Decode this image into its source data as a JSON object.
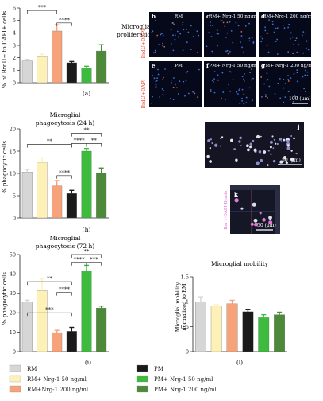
{
  "colors": {
    "RM": "#d6d6d6",
    "RM_nrg50": "#fdf1b8",
    "RM_nrg200": "#f6a27a",
    "PM": "#1a1a1a",
    "PM_nrg50": "#3dbb3d",
    "PM_nrg200": "#4c8a3a",
    "axis": "#222222",
    "micro_bg": "#06091a"
  },
  "legend": {
    "entries": [
      {
        "key": "RM",
        "label": "RM"
      },
      {
        "key": "RM_nrg50",
        "label": "RM+ Nrg-1 50 ng/ml"
      },
      {
        "key": "RM_nrg200",
        "label": "RM+Nrg-1 200 ng/ml"
      },
      {
        "key": "PM",
        "label": "PM"
      },
      {
        "key": "PM_nrg50",
        "label": "PM+ Nrg-1 50 ng/ml"
      },
      {
        "key": "PM_nrg200",
        "label": "PM+ Nrg-1 200 ng/ml"
      }
    ]
  },
  "micrographs": {
    "ylabel_top": "BrdU+DAPI",
    "ylabel_bottom": "BrdU+DAPI",
    "top_row": [
      {
        "letter": "b",
        "title": "RM"
      },
      {
        "letter": "c",
        "title": "RM+ Nrg-1 50 ng/ml"
      },
      {
        "letter": "d",
        "title": "RM+Nrg-1 200 ng/ml"
      }
    ],
    "bottom_row": [
      {
        "letter": "e",
        "title": "PM"
      },
      {
        "letter": "f",
        "title": "PM+ Nrg-1 50 ng/ml"
      },
      {
        "letter": "g",
        "title": "PM+ Nrg-1 200 ng/ml"
      }
    ],
    "scale_bar_g": "100 (μm)",
    "panel_j": {
      "letter": "j",
      "scale": "50 (μm)"
    },
    "panel_k": {
      "letter": "k",
      "scale": "50 (μm)",
      "ylabel": "Iba 1-DAPI-Beads"
    }
  },
  "chart_data": [
    {
      "id": "a",
      "type": "bar",
      "title": "Microglial proliferation",
      "panel_label": "(a)",
      "ylabel": "% of BrdU+ to DAPI+ cells",
      "ylim": [
        0,
        6
      ],
      "yticks": [
        "0",
        "1",
        "2",
        "3",
        "4",
        "5",
        "6"
      ],
      "categories": [
        "RM",
        "RM+ Nrg-1 50 ng/ml",
        "RM+Nrg-1 200 ng/ml",
        "PM",
        "PM+ Nrg-1 50 ng/ml",
        "PM+ Nrg-1 200 ng/ml"
      ],
      "values": [
        1.75,
        2.1,
        4.15,
        1.6,
        1.2,
        2.55
      ],
      "errors": [
        0.12,
        0.2,
        0.5,
        0.1,
        0.12,
        0.5
      ],
      "significance": [
        {
          "from": 0,
          "to": 2,
          "label": "***",
          "y": 5.8
        },
        {
          "from": 2,
          "to": 3,
          "label": "****",
          "y": 4.8
        }
      ]
    },
    {
      "id": "h",
      "type": "bar",
      "title": "Microglial phagocytosis (24 h)",
      "panel_label": "(h)",
      "ylabel": "% phagocytic cells",
      "ylim": [
        0,
        20
      ],
      "yticks": [
        "0",
        "5",
        "10",
        "15",
        "20"
      ],
      "categories": [
        "RM",
        "RM+ Nrg-1 50 ng/ml",
        "RM+Nrg-1 200 ng/ml",
        "PM",
        "PM+ Nrg-1 50 ng/ml",
        "PM+ Nrg-1 200 ng/ml"
      ],
      "values": [
        10.3,
        12.5,
        7.2,
        5.5,
        15.0,
        10.0
      ],
      "errors": [
        0.6,
        1.0,
        1.2,
        0.7,
        0.6,
        1.2
      ],
      "significance": [
        {
          "from": 0,
          "to": 3,
          "label": "**",
          "y": 16.5
        },
        {
          "from": 2,
          "to": 3,
          "label": "****",
          "y": 9.5
        },
        {
          "from": 3,
          "to": 4,
          "label": "****",
          "y": 16.7
        },
        {
          "from": 3,
          "to": 5,
          "label": "**",
          "y": 19.0
        },
        {
          "from": 4,
          "to": 5,
          "label": "**",
          "y": 16.7
        }
      ]
    },
    {
      "id": "i",
      "type": "bar",
      "title": "Microglial phagocytosis (72 h)",
      "panel_label": "(i)",
      "ylabel": "% phagocytic cells",
      "ylim": [
        0,
        50
      ],
      "yticks": [
        "0",
        "10",
        "20",
        "30",
        "40",
        "50"
      ],
      "categories": [
        "RM",
        "RM+ Nrg-1 50 ng/ml",
        "RM+Nrg-1 200 ng/ml",
        "PM",
        "PM+ Nrg-1 50 ng/ml",
        "PM+ Nrg-1 200 ng/ml"
      ],
      "values": [
        25.5,
        31.5,
        9.8,
        10.5,
        41.5,
        22.5
      ],
      "errors": [
        1.0,
        6.0,
        1.2,
        2.0,
        3.0,
        1.0
      ],
      "significance": [
        {
          "from": 0,
          "to": 3,
          "label": "**",
          "y": 36.0
        },
        {
          "from": 2,
          "to": 3,
          "label": "****",
          "y": 30.5
        },
        {
          "from": 0,
          "to": 3,
          "label": "***",
          "y": 20.0
        },
        {
          "from": 3,
          "to": 4,
          "label": "****",
          "y": 46.0
        },
        {
          "from": 3,
          "to": 5,
          "label": "**",
          "y": 50.0
        },
        {
          "from": 4,
          "to": 5,
          "label": "***",
          "y": 46.0
        }
      ]
    },
    {
      "id": "l",
      "type": "bar",
      "title": "Microglial mobility",
      "panel_label": "(l)",
      "ylabel": "Microglial mobility normalized to RM",
      "ylim": [
        0,
        1.5
      ],
      "yticks": [
        "0",
        "0.5",
        "1",
        "1.5"
      ],
      "categories": [
        "RM",
        "RM+ Nrg-1 50 ng/ml",
        "RM+Nrg-1 200 ng/ml",
        "PM",
        "PM+ Nrg-1 50 ng/ml",
        "PM+ Nrg-1 200 ng/ml"
      ],
      "values": [
        1.0,
        0.92,
        0.96,
        0.8,
        0.68,
        0.74
      ],
      "errors": [
        0.1,
        0.02,
        0.07,
        0.05,
        0.06,
        0.05
      ],
      "significance": []
    }
  ]
}
